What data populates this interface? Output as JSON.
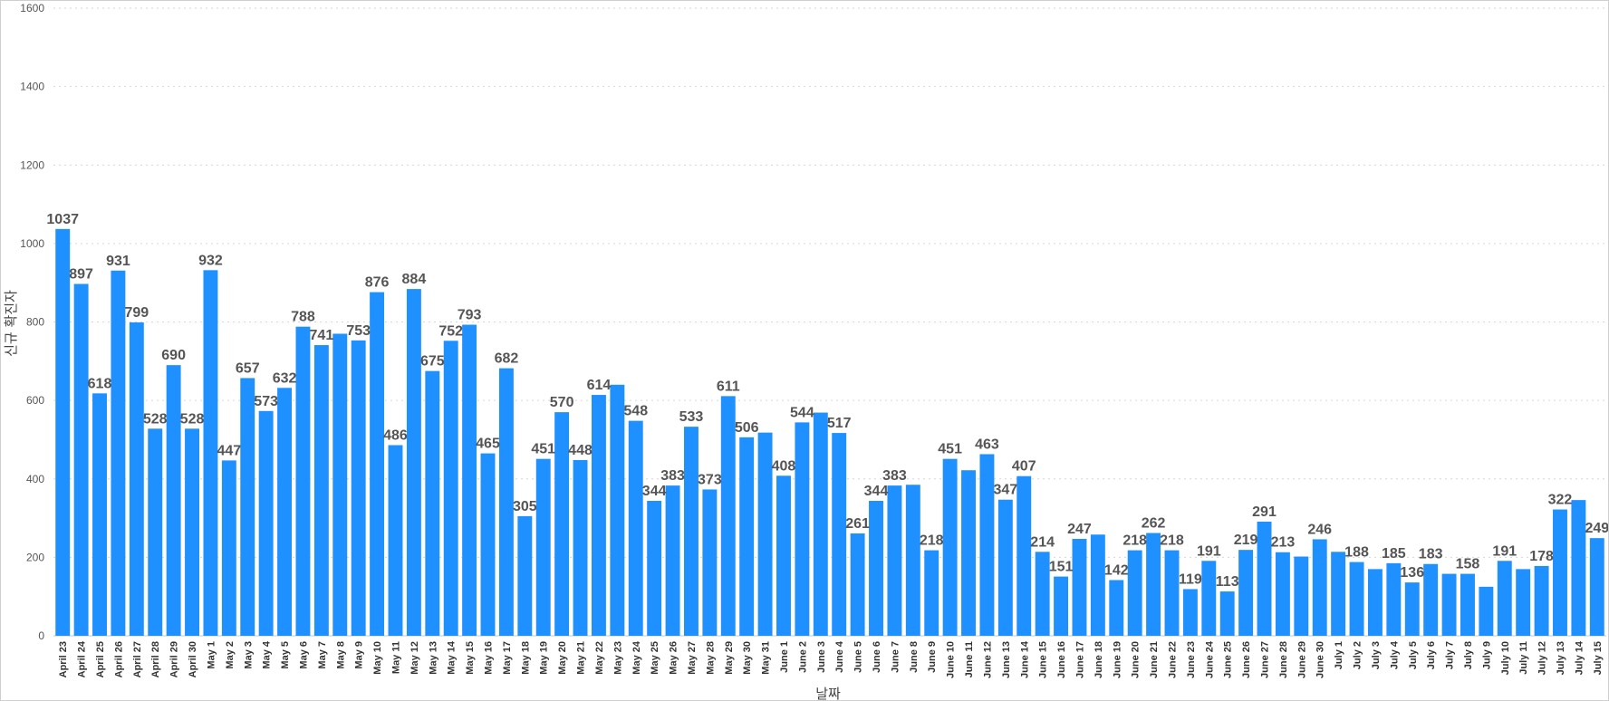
{
  "chart_data": {
    "type": "bar",
    "title": "",
    "xlabel": "날짜",
    "ylabel": "신규 확진자",
    "ylim": [
      0,
      1600
    ],
    "yticks": [
      0,
      200,
      400,
      600,
      800,
      1000,
      1200,
      1400,
      1600
    ],
    "grid": true,
    "legend": "none",
    "bar_color": "#1E90FF",
    "categories": [
      "April 23",
      "April 24",
      "April 25",
      "April 26",
      "April 27",
      "April 28",
      "April 29",
      "April 30",
      "May 1",
      "May 2",
      "May 3",
      "May 4",
      "May 5",
      "May 6",
      "May 7",
      "May 8",
      "May 9",
      "May 10",
      "May 11",
      "May 12",
      "May 13",
      "May 14",
      "May 15",
      "May 16",
      "May 17",
      "May 18",
      "May 19",
      "May 20",
      "May 21",
      "May 22",
      "May 23",
      "May 24",
      "May 25",
      "May 26",
      "May 27",
      "May 28",
      "May 29",
      "May 30",
      "May 31",
      "June 1",
      "June 2",
      "June 3",
      "June 4",
      "June 5",
      "June 6",
      "June 7",
      "June 8",
      "June 9",
      "June 10",
      "June 11",
      "June 12",
      "June 13",
      "June 14",
      "June 15",
      "June 16",
      "June 17",
      "June 18",
      "June 19",
      "June 20",
      "June 21",
      "June 22",
      "June 23",
      "June 24",
      "June 25",
      "June 26",
      "June 27",
      "June 28",
      "June 29",
      "June 30",
      "July 1",
      "July 2",
      "July 3",
      "July 4",
      "July 5",
      "July 6",
      "July 7",
      "July 8",
      "July 9",
      "July 10",
      "July 11",
      "July 12",
      "July 13",
      "July 14",
      "July 15"
    ],
    "values": [
      1037,
      897,
      618,
      931,
      799,
      528,
      690,
      528,
      932,
      447,
      657,
      573,
      632,
      788,
      741,
      770,
      753,
      876,
      486,
      884,
      675,
      752,
      793,
      465,
      682,
      305,
      451,
      570,
      448,
      614,
      640,
      548,
      344,
      383,
      533,
      373,
      611,
      506,
      518,
      408,
      544,
      569,
      517,
      261,
      344,
      383,
      385,
      218,
      451,
      422,
      463,
      347,
      407,
      214,
      151,
      247,
      258,
      142,
      218,
      262,
      218,
      119,
      191,
      113,
      219,
      291,
      213,
      202,
      246,
      214,
      188,
      170,
      185,
      136,
      183,
      158,
      158,
      125,
      191,
      170,
      178,
      322,
      346,
      249
    ],
    "labels": [
      "1037",
      "897",
      "618",
      "931",
      "799",
      "528",
      "690",
      "528",
      "932",
      "447",
      "657",
      "573",
      "632",
      "788",
      "741",
      "",
      "753",
      "876",
      "486",
      "884",
      "675",
      "752",
      "793",
      "465",
      "682",
      "305",
      "451",
      "570",
      "448",
      "614",
      "",
      "548",
      "344",
      "383",
      "533",
      "373",
      "611",
      "506",
      "",
      "408",
      "544",
      "",
      "517",
      "261",
      "344",
      "383",
      "",
      "218",
      "451",
      "",
      "463",
      "347",
      "407",
      "214",
      "151",
      "247",
      "",
      "142",
      "218",
      "262",
      "218",
      "119",
      "191",
      "113",
      "219",
      "291",
      "213",
      "",
      "246",
      "",
      "188",
      "",
      "185",
      "136",
      "183",
      "",
      "158",
      "",
      "191",
      "",
      "178",
      "322",
      "",
      "249"
    ]
  }
}
